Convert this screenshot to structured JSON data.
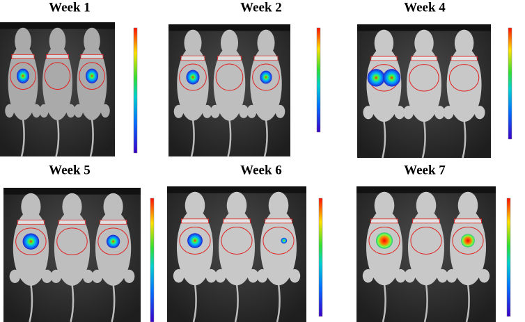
{
  "panels": [
    {
      "title": "Week 1"
    },
    {
      "title": "Week 2"
    },
    {
      "title": "Week 4"
    },
    {
      "title": "Week 5"
    },
    {
      "title": "Week 6"
    },
    {
      "title": "Week 7"
    }
  ]
}
